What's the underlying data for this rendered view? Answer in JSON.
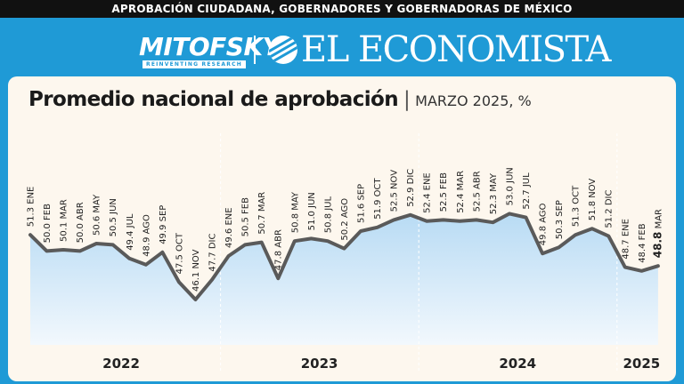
{
  "header": {
    "banner": "APROBACIÓN CIUDADANA, GOBERNADORES Y GOBERNADORAS DE MÉXICO",
    "brand_left": "MITOFSKY",
    "brand_left_tagline": "REINVENTING RESEARCH",
    "brand_right": "EL ECONOMISTA"
  },
  "chart_data": {
    "type": "area",
    "title": "Promedio nacional de aprobación",
    "subtitle": "MARZO 2025, %",
    "years": [
      "2022",
      "2023",
      "2024",
      "2025"
    ],
    "points": [
      {
        "label": "51.3 ENE",
        "value": 51.3
      },
      {
        "label": "50.0 FEB",
        "value": 50.0
      },
      {
        "label": "50.1 MAR",
        "value": 50.1
      },
      {
        "label": "50.0 ABR",
        "value": 50.0
      },
      {
        "label": "50.6 MAY",
        "value": 50.6
      },
      {
        "label": "50.5 JUN",
        "value": 50.5
      },
      {
        "label": "49.4 JUL",
        "value": 49.4
      },
      {
        "label": "48.9 AGO",
        "value": 48.9
      },
      {
        "label": "49.9 SEP",
        "value": 49.9
      },
      {
        "label": "47.5 OCT",
        "value": 47.5
      },
      {
        "label": "46.1 NOV",
        "value": 46.1
      },
      {
        "label": "47.7 DIC",
        "value": 47.7
      },
      {
        "label": "49.6 ENE",
        "value": 49.6
      },
      {
        "label": "50.5 FEB",
        "value": 50.5
      },
      {
        "label": "50.7 MAR",
        "value": 50.7
      },
      {
        "label": "47.8 ABR",
        "value": 47.8
      },
      {
        "label": "50.8 MAY",
        "value": 50.8
      },
      {
        "label": "51.0 JUN",
        "value": 51.0
      },
      {
        "label": "50.8 JUL",
        "value": 50.8
      },
      {
        "label": "50.2 AGO",
        "value": 50.2
      },
      {
        "label": "51.6 SEP",
        "value": 51.6
      },
      {
        "label": "51.9 OCT",
        "value": 51.9
      },
      {
        "label": "52.5 NOV",
        "value": 52.5
      },
      {
        "label": "52.9 DIC",
        "value": 52.9
      },
      {
        "label": "52.4 ENE",
        "value": 52.4
      },
      {
        "label": "52.5 FEB",
        "value": 52.5
      },
      {
        "label": "52.4 MAR",
        "value": 52.4
      },
      {
        "label": "52.5 ABR",
        "value": 52.5
      },
      {
        "label": "52.3 MAY",
        "value": 52.3
      },
      {
        "label": "53.0 JUN",
        "value": 53.0
      },
      {
        "label": "52.7 JUL",
        "value": 52.7
      },
      {
        "label": "49.8 AGO",
        "value": 49.8
      },
      {
        "label": "50.3 SEP",
        "value": 50.3
      },
      {
        "label": "51.3 OCT",
        "value": 51.3
      },
      {
        "label": "51.8 NOV",
        "value": 51.8
      },
      {
        "label": "51.2 DIC",
        "value": 51.2
      },
      {
        "label": "48.7 ENE",
        "value": 48.7
      },
      {
        "label": "48.4 FEB",
        "value": 48.4
      },
      {
        "label": "48.8 MAR",
        "value": 48.8
      }
    ],
    "colors": {
      "line": "#5a5a5a",
      "fill_top": "#b8dbf4",
      "fill_bottom": "#f2f8fd",
      "banner": "#111111",
      "background": "#1f9ad6",
      "panel": "#fdf7ee"
    }
  }
}
